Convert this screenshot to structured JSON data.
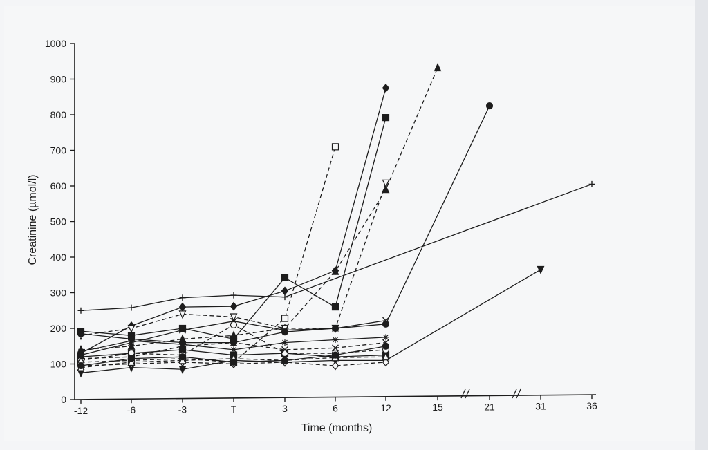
{
  "chart_data": {
    "type": "line",
    "title": "",
    "xlabel": "Time (months)",
    "ylabel": "Creatinine (µmol/l)",
    "x_categories": [
      "-12",
      "-6",
      "-3",
      "T",
      "3",
      "6",
      "12",
      "15",
      "21",
      "31",
      "36"
    ],
    "x_axis_breaks": [
      "between 15 and 21",
      "between 21 and 31"
    ],
    "ylim": [
      0,
      1000
    ],
    "y_ticks": [
      0,
      100,
      200,
      300,
      400,
      500,
      600,
      700,
      800,
      900,
      1000
    ],
    "grid": false,
    "legend": "none",
    "colors": {
      "ink": "#1d1d1d"
    },
    "series": [
      {
        "marker": "plus",
        "dash": "solid",
        "points": [
          [
            -12,
            250
          ],
          [
            -6,
            258
          ],
          [
            -3,
            286
          ],
          [
            "T",
            293
          ],
          [
            3,
            288
          ],
          [
            36,
            605
          ]
        ]
      },
      {
        "marker": "diamond",
        "dash": "solid",
        "points": [
          [
            -12,
            130
          ],
          [
            -6,
            207
          ],
          [
            -3,
            260
          ],
          [
            "T",
            262
          ],
          [
            3,
            305
          ],
          [
            6,
            362
          ],
          [
            12,
            875
          ]
        ]
      },
      {
        "marker": "square",
        "dash": "solid",
        "points": [
          [
            -12,
            192
          ],
          [
            -6,
            180
          ],
          [
            -3,
            200
          ],
          [
            "T",
            170
          ],
          [
            3,
            342
          ],
          [
            6,
            260
          ],
          [
            12,
            792
          ]
        ]
      },
      {
        "marker": "triangle-up",
        "dash": "dashed",
        "points": [
          [
            -12,
            140
          ],
          [
            -6,
            150
          ],
          [
            -3,
            170
          ],
          [
            "T",
            180
          ],
          [
            3,
            200
          ],
          [
            6,
            360
          ],
          [
            12,
            590
          ],
          [
            15,
            932
          ]
        ]
      },
      {
        "marker": "square-open",
        "dash": "dashed",
        "points": [
          [
            -12,
            105
          ],
          [
            -6,
            110
          ],
          [
            -3,
            115
          ],
          [
            "T",
            105
          ],
          [
            3,
            228
          ],
          [
            6,
            710
          ]
        ]
      },
      {
        "marker": "triangle-down-open",
        "dash": "dashed",
        "points": [
          [
            -12,
            180
          ],
          [
            -6,
            200
          ],
          [
            -3,
            240
          ],
          [
            "T",
            232
          ],
          [
            3,
            200
          ],
          [
            6,
            200
          ],
          [
            12,
            608
          ]
        ]
      },
      {
        "marker": "circle",
        "dash": "solid",
        "points": [
          [
            -12,
            185
          ],
          [
            -6,
            170
          ],
          [
            -3,
            160
          ],
          [
            "T",
            160
          ],
          [
            3,
            190
          ],
          [
            6,
            200
          ],
          [
            12,
            212
          ],
          [
            21,
            825
          ]
        ]
      },
      {
        "marker": "triangle-down",
        "dash": "solid",
        "points": [
          [
            -12,
            75
          ],
          [
            -6,
            90
          ],
          [
            -3,
            85
          ],
          [
            "T",
            110
          ],
          [
            3,
            105
          ],
          [
            6,
            110
          ],
          [
            12,
            110
          ],
          [
            31,
            365
          ]
        ]
      },
      {
        "marker": "asterisk",
        "dash": "solid",
        "points": [
          [
            -12,
            135
          ],
          [
            -6,
            165
          ],
          [
            -3,
            155
          ],
          [
            "T",
            140
          ],
          [
            3,
            160
          ],
          [
            6,
            168
          ],
          [
            12,
            175
          ]
        ]
      },
      {
        "marker": "cross",
        "dash": "solid",
        "points": [
          [
            -12,
            125
          ],
          [
            -6,
            160
          ],
          [
            -3,
            195
          ],
          [
            "T",
            220
          ],
          [
            3,
            195
          ],
          [
            6,
            200
          ],
          [
            12,
            222
          ]
        ]
      },
      {
        "marker": "square",
        "dash": "solid",
        "points": [
          [
            -12,
            120
          ],
          [
            -6,
            130
          ],
          [
            -3,
            140
          ],
          [
            "T",
            125
          ],
          [
            3,
            130
          ],
          [
            6,
            120
          ],
          [
            12,
            125
          ]
        ]
      },
      {
        "marker": "diamond-open",
        "dash": "dashed",
        "points": [
          [
            -12,
            95
          ],
          [
            -6,
            100
          ],
          [
            -3,
            105
          ],
          [
            "T",
            100
          ],
          [
            3,
            105
          ],
          [
            6,
            95
          ],
          [
            12,
            105
          ]
        ]
      },
      {
        "marker": "circle-open",
        "dash": "dashed",
        "points": [
          [
            -12,
            110
          ],
          [
            -6,
            130
          ],
          [
            -3,
            125
          ],
          [
            "T",
            210
          ],
          [
            3,
            130
          ],
          [
            6,
            130
          ],
          [
            12,
            140
          ]
        ]
      },
      {
        "marker": "triangle-up-open",
        "dash": "dashed",
        "points": [
          [
            -12,
            90
          ],
          [
            -6,
            105
          ],
          [
            -3,
            110
          ],
          [
            "T",
            115
          ],
          [
            3,
            110
          ],
          [
            6,
            118
          ],
          [
            12,
            120
          ]
        ]
      },
      {
        "marker": "circle",
        "dash": "solid",
        "points": [
          [
            -12,
            95
          ],
          [
            -6,
            115
          ],
          [
            -3,
            120
          ],
          [
            "T",
            105
          ],
          [
            3,
            110
          ],
          [
            6,
            125
          ],
          [
            12,
            150
          ]
        ]
      },
      {
        "marker": "cross",
        "dash": "dashed",
        "points": [
          [
            -12,
            115
          ],
          [
            -6,
            120
          ],
          [
            -3,
            150
          ],
          [
            "T",
            160
          ],
          [
            3,
            140
          ],
          [
            6,
            145
          ],
          [
            12,
            160
          ]
        ]
      }
    ]
  }
}
